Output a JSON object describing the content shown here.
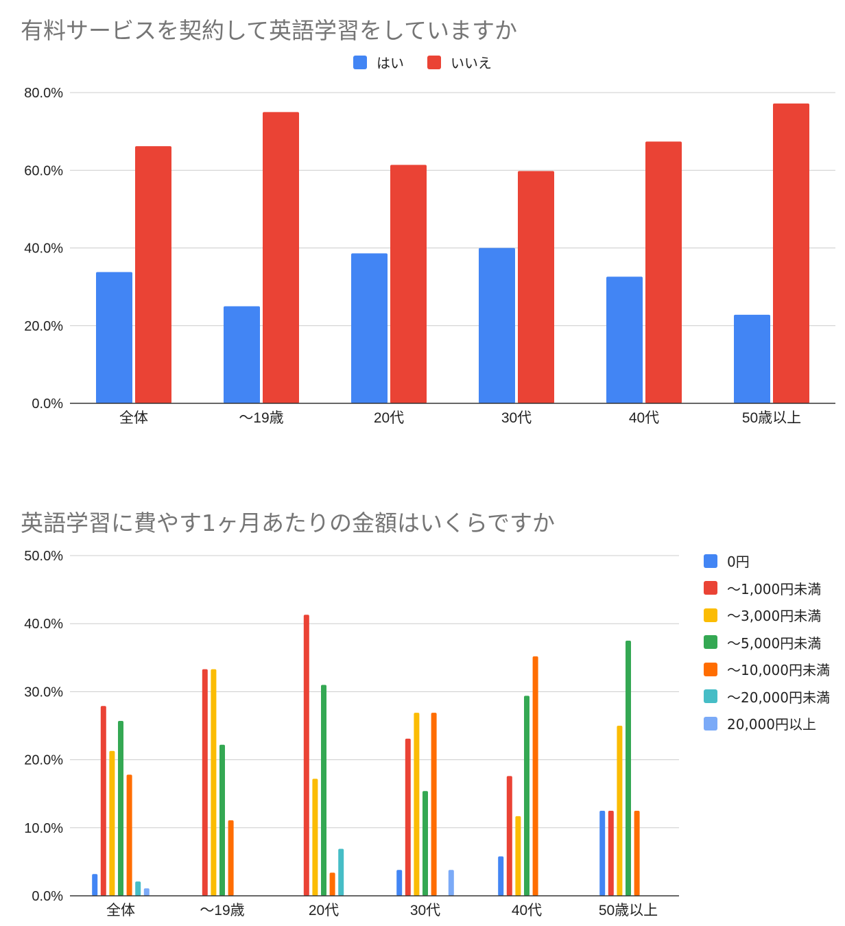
{
  "chart_data": [
    {
      "type": "bar",
      "title": "有料サービスを契約して英語学習をしていますか",
      "categories": [
        "全体",
        "〜19歳",
        "20代",
        "30代",
        "40代",
        "50歳以上"
      ],
      "series": [
        {
          "name": "はい",
          "color": "#4285f4",
          "values": [
            33.8,
            25.0,
            38.6,
            40.0,
            32.6,
            22.8
          ]
        },
        {
          "name": "いいえ",
          "color": "#ea4335",
          "values": [
            66.2,
            75.0,
            61.4,
            59.8,
            67.4,
            77.2
          ]
        }
      ],
      "y_ticks": [
        "0.0%",
        "20.0%",
        "40.0%",
        "60.0%",
        "80.0%"
      ],
      "ylim": [
        0,
        80
      ],
      "legend_position": "top",
      "grid": true
    },
    {
      "type": "bar",
      "title": "英語学習に費やす1ヶ月あたりの金額はいくらですか",
      "categories": [
        "全体",
        "〜19歳",
        "20代",
        "30代",
        "40代",
        "50歳以上"
      ],
      "series": [
        {
          "name": "0円",
          "color": "#4285f4",
          "values": [
            3.2,
            0,
            0,
            3.8,
            5.8,
            12.5
          ]
        },
        {
          "name": "〜1,000円未満",
          "color": "#ea4335",
          "values": [
            27.9,
            33.3,
            41.3,
            23.1,
            17.6,
            12.5
          ]
        },
        {
          "name": "〜3,000円未満",
          "color": "#fbbc04",
          "values": [
            21.3,
            33.3,
            17.2,
            26.9,
            11.7,
            25.0
          ]
        },
        {
          "name": "〜5,000円未満",
          "color": "#34a853",
          "values": [
            25.7,
            22.2,
            31.0,
            15.4,
            29.4,
            37.5
          ]
        },
        {
          "name": "〜10,000円未満",
          "color": "#ff6d01",
          "values": [
            17.8,
            11.1,
            3.4,
            26.9,
            35.2,
            12.5
          ]
        },
        {
          "name": "〜20,000円未満",
          "color": "#46bdc6",
          "values": [
            2.1,
            0,
            6.9,
            0,
            0,
            0
          ]
        },
        {
          "name": "20,000円以上",
          "color": "#7baaf7",
          "values": [
            1.1,
            0,
            0,
            3.8,
            0,
            0
          ]
        }
      ],
      "y_ticks": [
        "0.0%",
        "10.0%",
        "20.0%",
        "30.0%",
        "40.0%",
        "50.0%"
      ],
      "ylim": [
        0,
        50
      ],
      "legend_position": "right",
      "grid": true
    }
  ]
}
